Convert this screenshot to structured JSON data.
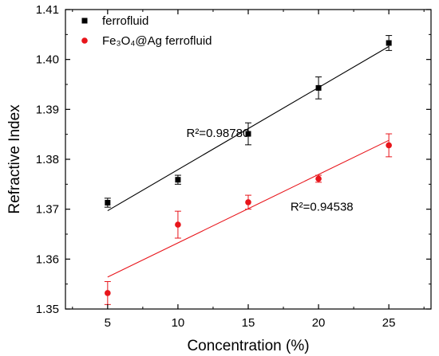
{
  "chart_data": {
    "type": "scatter",
    "xlabel": "Concentration (%)",
    "ylabel": "Refractive Index",
    "xlim": [
      2,
      28
    ],
    "ylim": [
      1.35,
      1.41
    ],
    "xticks": [
      5,
      10,
      15,
      20,
      25
    ],
    "yticks": [
      1.35,
      1.36,
      1.37,
      1.38,
      1.39,
      1.4,
      1.41
    ],
    "xtick_labels": [
      "5",
      "10",
      "15",
      "20",
      "25"
    ],
    "ytick_labels": [
      "1.35",
      "1.36",
      "1.37",
      "1.38",
      "1.39",
      "1.40",
      "1.41"
    ],
    "grid": false,
    "legend_position": "top-left",
    "series": [
      {
        "name": "ferrofluid",
        "marker": "square",
        "color": "#000000",
        "x": [
          5,
          10,
          15,
          20,
          25
        ],
        "y": [
          1.3713,
          1.3759,
          1.3851,
          1.3943,
          1.4033
        ],
        "error": [
          0.0009,
          0.0009,
          0.0022,
          0.0022,
          0.0015
        ],
        "fit": {
          "x": [
            5,
            25
          ],
          "y": [
            1.3697,
            1.4026
          ]
        }
      },
      {
        "name": "Fe₃O₄@Ag ferrofluid",
        "marker": "circle",
        "color": "#e8151b",
        "x": [
          5,
          10,
          15,
          20,
          25
        ],
        "y": [
          1.3532,
          1.3669,
          1.3714,
          1.3761,
          1.3828
        ],
        "error": [
          0.0023,
          0.0027,
          0.0014,
          0.0007,
          0.0023
        ],
        "fit": {
          "x": [
            5,
            25
          ],
          "y": [
            1.3564,
            1.3838
          ]
        }
      }
    ],
    "annotations": [
      {
        "text": "R²=0.98780",
        "x": 10.6,
        "y": 1.3845
      },
      {
        "text": "R²=0.94538",
        "x": 18.0,
        "y": 1.3697
      }
    ]
  }
}
